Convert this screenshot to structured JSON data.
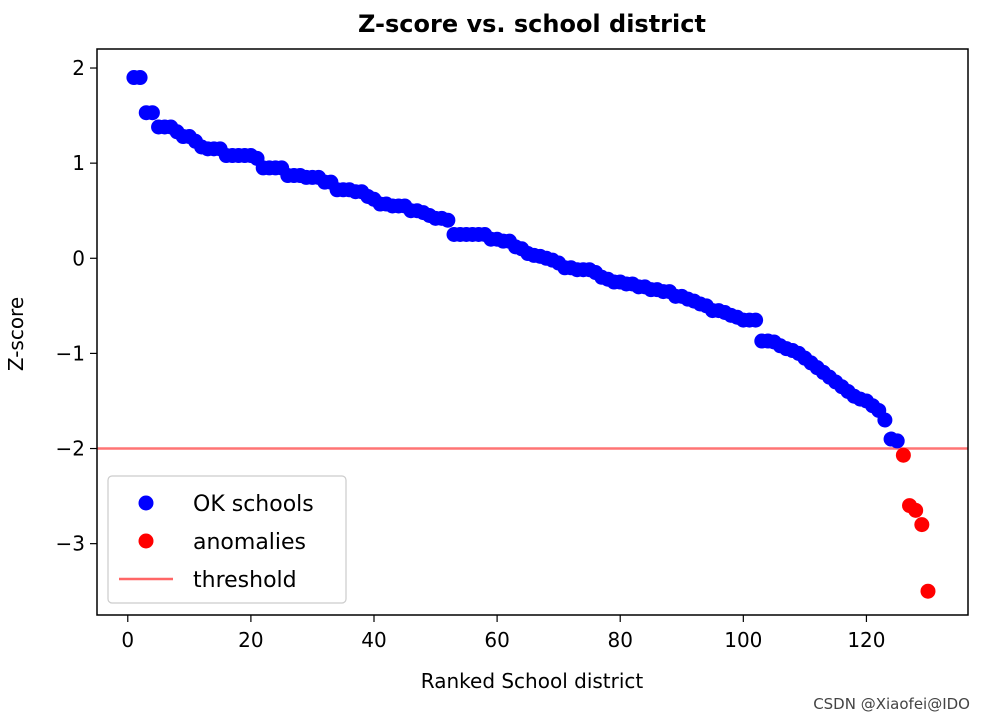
{
  "chart_data": {
    "type": "scatter",
    "title": "Z-score vs. school district",
    "xlabel": "Ranked School district",
    "ylabel": "Z-score",
    "xlim": [
      -5,
      136.5
    ],
    "ylim": [
      -3.75,
      2.2
    ],
    "xticks": [
      0,
      20,
      40,
      60,
      80,
      100,
      120
    ],
    "xtick_labels": [
      "0",
      "20",
      "40",
      "60",
      "80",
      "100",
      "120"
    ],
    "yticks": [
      2,
      1,
      0,
      -1,
      -2,
      -3
    ],
    "ytick_labels": [
      "2",
      "1",
      "0",
      "−1",
      "−2",
      "−3"
    ],
    "grid": false,
    "legend_position": "lower-left",
    "threshold": -2,
    "series": [
      {
        "name": "OK schools",
        "color": "#0000ff",
        "marker": "circle",
        "x": [
          1,
          2,
          3,
          4,
          5,
          6,
          7,
          8,
          9,
          10,
          11,
          12,
          13,
          14,
          15,
          16,
          17,
          18,
          19,
          20,
          21,
          22,
          23,
          24,
          25,
          26,
          27,
          28,
          29,
          30,
          31,
          32,
          33,
          34,
          35,
          36,
          37,
          38,
          39,
          40,
          41,
          42,
          43,
          44,
          45,
          46,
          47,
          48,
          49,
          50,
          51,
          52,
          53,
          54,
          55,
          56,
          57,
          58,
          59,
          60,
          61,
          62,
          63,
          64,
          65,
          66,
          67,
          68,
          69,
          70,
          71,
          72,
          73,
          74,
          75,
          76,
          77,
          78,
          79,
          80,
          81,
          82,
          83,
          84,
          85,
          86,
          87,
          88,
          89,
          90,
          91,
          92,
          93,
          94,
          95,
          96,
          97,
          98,
          99,
          100,
          101,
          102,
          103,
          104,
          105,
          106,
          107,
          108,
          109,
          110,
          111,
          112,
          113,
          114,
          115,
          116,
          117,
          118,
          119,
          120,
          121,
          122,
          123,
          124,
          125
        ],
        "y": [
          1.9,
          1.9,
          1.53,
          1.53,
          1.38,
          1.38,
          1.38,
          1.33,
          1.28,
          1.28,
          1.23,
          1.17,
          1.15,
          1.15,
          1.15,
          1.08,
          1.08,
          1.08,
          1.08,
          1.08,
          1.05,
          0.95,
          0.95,
          0.95,
          0.95,
          0.87,
          0.87,
          0.87,
          0.85,
          0.85,
          0.85,
          0.8,
          0.8,
          0.72,
          0.72,
          0.72,
          0.7,
          0.7,
          0.65,
          0.62,
          0.57,
          0.57,
          0.55,
          0.55,
          0.55,
          0.5,
          0.5,
          0.48,
          0.45,
          0.42,
          0.42,
          0.4,
          0.25,
          0.25,
          0.25,
          0.25,
          0.25,
          0.25,
          0.2,
          0.2,
          0.18,
          0.18,
          0.12,
          0.1,
          0.05,
          0.03,
          0.02,
          0.0,
          -0.02,
          -0.05,
          -0.1,
          -0.1,
          -0.12,
          -0.12,
          -0.12,
          -0.15,
          -0.2,
          -0.22,
          -0.25,
          -0.25,
          -0.27,
          -0.27,
          -0.3,
          -0.3,
          -0.33,
          -0.33,
          -0.35,
          -0.35,
          -0.4,
          -0.4,
          -0.43,
          -0.45,
          -0.48,
          -0.5,
          -0.55,
          -0.55,
          -0.57,
          -0.6,
          -0.62,
          -0.65,
          -0.65,
          -0.65,
          -0.87,
          -0.87,
          -0.88,
          -0.92,
          -0.95,
          -0.97,
          -1.0,
          -1.05,
          -1.1,
          -1.15,
          -1.2,
          -1.25,
          -1.3,
          -1.35,
          -1.4,
          -1.45,
          -1.48,
          -1.5,
          -1.55,
          -1.6,
          -1.7,
          -1.9,
          -1.92
        ]
      },
      {
        "name": "anomalies",
        "color": "#ff0000",
        "marker": "circle",
        "x": [
          126,
          127,
          128,
          129,
          130
        ],
        "y": [
          -2.07,
          -2.6,
          -2.65,
          -2.8,
          -3.5
        ]
      },
      {
        "name": "threshold",
        "color": "#ff6666",
        "marker": "line",
        "y": [
          -2,
          -2
        ]
      }
    ]
  },
  "watermark": "CSDN @Xiaofei@IDO"
}
